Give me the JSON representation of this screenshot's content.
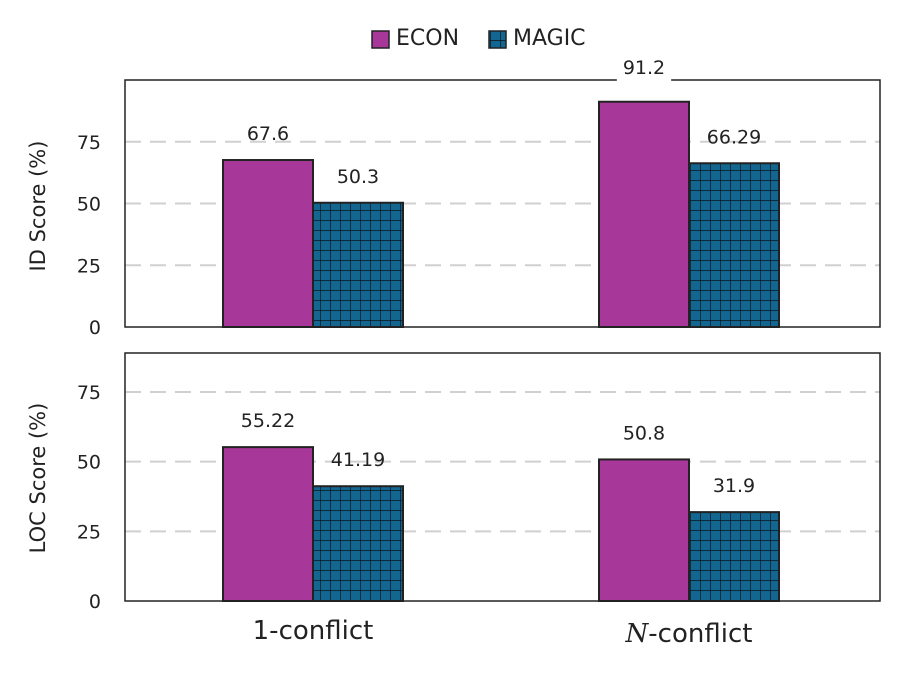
{
  "colors": {
    "econ": "#a8379a",
    "magic": "#13668f",
    "magic_grid": "#0a1520",
    "frame": "#222222",
    "grid": "#d0d0d0"
  },
  "legend": [
    {
      "name": "ECON",
      "color": "#a8379a",
      "pattern": "solid"
    },
    {
      "name": "MAGIC",
      "color": "#13668f",
      "pattern": "grid"
    }
  ],
  "chart_data": [
    {
      "type": "bar",
      "ylabel": "ID Score (%)",
      "categories": [
        "1-conflict",
        "N-conflict"
      ],
      "series": [
        {
          "name": "ECON",
          "values": [
            67.6,
            91.2
          ],
          "labels": [
            "67.6",
            "91.2"
          ]
        },
        {
          "name": "MAGIC",
          "values": [
            50.3,
            66.29
          ],
          "labels": [
            "50.3",
            "66.29"
          ]
        }
      ],
      "ylim": [
        0,
        100
      ],
      "yticks": [
        0,
        25,
        50,
        75
      ],
      "grid": true,
      "legend": "top-center"
    },
    {
      "type": "bar",
      "ylabel": "LOC Score (%)",
      "categories": [
        "1-conflict",
        "N-conflict"
      ],
      "series": [
        {
          "name": "ECON",
          "values": [
            55.22,
            50.8
          ],
          "labels": [
            "55.22",
            "50.8"
          ]
        },
        {
          "name": "MAGIC",
          "values": [
            41.19,
            31.9
          ],
          "labels": [
            "41.19",
            "31.9"
          ]
        }
      ],
      "ylim": [
        0,
        89
      ],
      "yticks": [
        0,
        25,
        50,
        75
      ],
      "grid": true
    }
  ],
  "x_categories": [
    {
      "prefix": "",
      "rest": "1-conflict"
    },
    {
      "prefix": "N",
      "rest": "-conflict"
    }
  ]
}
